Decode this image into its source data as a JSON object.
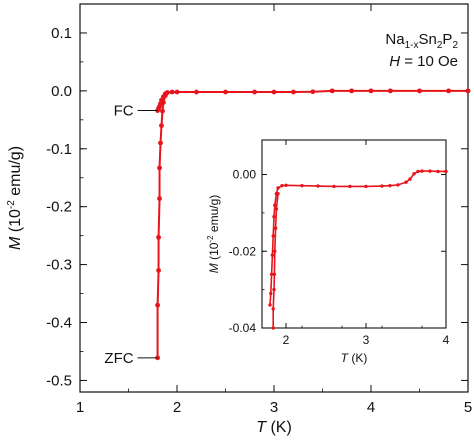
{
  "chart_data": [
    {
      "type": "line",
      "xlabel": {
        "italic": "T",
        "rest": " (K)"
      },
      "ylabel": {
        "italic": "M",
        "pre": " (10",
        "sup": "-2",
        "post": " emu/g)"
      },
      "xlim": [
        1,
        5
      ],
      "ylim": [
        -0.52,
        0.15
      ],
      "xticks": [
        1,
        2,
        3,
        4,
        5
      ],
      "xtick_labels": [
        "1",
        "2",
        "3",
        "4",
        "5"
      ],
      "yticks": [
        0.1,
        0.0,
        -0.1,
        -0.2,
        -0.3,
        -0.4,
        -0.5
      ],
      "ytick_labels": [
        "0.1",
        "0.0",
        "-0.1",
        "-0.2",
        "-0.3",
        "-0.4",
        "-0.5"
      ],
      "grid": false,
      "legend": "none",
      "color": "#e8141c",
      "annotation": {
        "compound": {
          "a": "Na",
          "s1": "1-x",
          "b": "Sn",
          "s2": "2",
          "c": "P",
          "s3": "2"
        },
        "field": {
          "italic": "H",
          "rest": " = 10 Oe"
        }
      },
      "labels": {
        "fc": "FC",
        "zfc": "ZFC"
      },
      "label_points": {
        "fc": [
          1.8,
          -0.034
        ],
        "zfc": [
          1.8,
          -0.461
        ]
      },
      "series": [
        {
          "values_xy": [
            [
              1.8,
              -0.461
            ],
            [
              1.8,
              -0.37
            ],
            [
              1.81,
              -0.31
            ],
            [
              1.81,
              -0.253
            ],
            [
              1.82,
              -0.186
            ],
            [
              1.82,
              -0.133
            ],
            [
              1.83,
              -0.09
            ],
            [
              1.84,
              -0.06
            ],
            [
              1.85,
              -0.035
            ],
            [
              1.86,
              -0.02
            ],
            [
              1.88,
              -0.008
            ],
            [
              1.9,
              -0.003
            ],
            [
              1.95,
              -0.002
            ],
            [
              2.0,
              -0.002
            ],
            [
              2.2,
              -0.002
            ],
            [
              2.5,
              -0.002
            ],
            [
              2.8,
              -0.002
            ],
            [
              3.0,
              -0.002
            ],
            [
              3.2,
              -0.002
            ],
            [
              3.4,
              -0.0015
            ],
            [
              3.6,
              0.0
            ],
            [
              3.8,
              0.0
            ],
            [
              4.0,
              0.0
            ],
            [
              4.2,
              0.0
            ],
            [
              4.5,
              0.0
            ],
            [
              4.8,
              0.0
            ],
            [
              5.0,
              0.0
            ]
          ]
        },
        {
          "values_xy": [
            [
              1.8,
              -0.034
            ],
            [
              1.81,
              -0.03
            ],
            [
              1.82,
              -0.027
            ],
            [
              1.83,
              -0.022
            ],
            [
              1.84,
              -0.016
            ],
            [
              1.86,
              -0.01
            ],
            [
              1.88,
              -0.005
            ],
            [
              1.9,
              -0.003
            ]
          ]
        }
      ]
    },
    {
      "type": "line",
      "xlabel": {
        "italic": "T",
        "rest": " (K)"
      },
      "ylabel": {
        "italic": "M",
        "pre": " (10",
        "sup": "-2",
        "post": " emu/g)"
      },
      "xlim": [
        1.7,
        4
      ],
      "ylim": [
        -0.04,
        0.009
      ],
      "xticks": [
        2,
        3,
        4
      ],
      "xtick_labels": [
        "2",
        "3",
        "4"
      ],
      "yticks": [
        0.0,
        -0.02,
        -0.04
      ],
      "ytick_labels": [
        "0.00",
        "-0.02",
        "-0.04"
      ],
      "grid": false,
      "color": "#e8141c",
      "series": [
        {
          "values_xy": [
            [
              1.8,
              -0.034
            ],
            [
              1.81,
              -0.031
            ],
            [
              1.82,
              -0.026
            ],
            [
              1.83,
              -0.021
            ],
            [
              1.84,
              -0.016
            ],
            [
              1.85,
              -0.011
            ],
            [
              1.86,
              -0.008
            ],
            [
              1.88,
              -0.005
            ],
            [
              1.9,
              -0.0035
            ],
            [
              1.95,
              -0.0029
            ],
            [
              2.0,
              -0.0028
            ],
            [
              2.2,
              -0.0029
            ],
            [
              2.4,
              -0.003
            ],
            [
              2.6,
              -0.0031
            ],
            [
              2.8,
              -0.0031
            ],
            [
              3.0,
              -0.0031
            ],
            [
              3.2,
              -0.003
            ],
            [
              3.3,
              -0.0029
            ],
            [
              3.4,
              -0.0027
            ],
            [
              3.5,
              -0.002
            ],
            [
              3.55,
              -0.0012
            ],
            [
              3.6,
              0.0002
            ],
            [
              3.65,
              0.0008
            ],
            [
              3.7,
              0.0009
            ],
            [
              3.8,
              0.0009
            ],
            [
              3.9,
              0.0008
            ],
            [
              4.0,
              0.0008
            ]
          ]
        },
        {
          "values_xy": [
            [
              1.84,
              -0.04
            ],
            [
              1.84,
              -0.035
            ],
            [
              1.85,
              -0.03
            ],
            [
              1.855,
              -0.026
            ],
            [
              1.86,
              -0.02
            ],
            [
              1.87,
              -0.014
            ],
            [
              1.88,
              -0.009
            ],
            [
              1.9,
              -0.005
            ]
          ]
        }
      ]
    }
  ]
}
